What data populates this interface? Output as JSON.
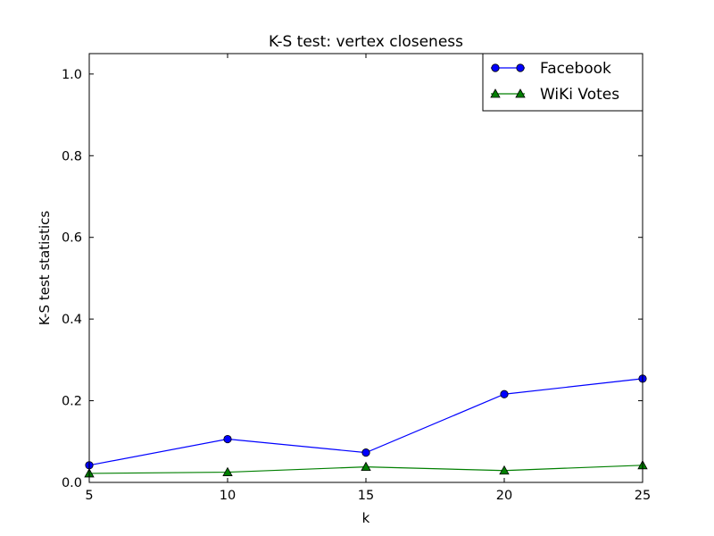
{
  "chart_data": {
    "type": "line",
    "title": "K-S test: vertex closeness",
    "xlabel": "k",
    "ylabel": "K-S test statistics",
    "x": [
      5,
      10,
      15,
      20,
      25
    ],
    "xlim": [
      5,
      25
    ],
    "ylim": [
      0,
      1.05
    ],
    "xticks": [
      5,
      10,
      15,
      20,
      25
    ],
    "yticks": [
      0.0,
      0.2,
      0.4,
      0.6,
      0.8,
      1.0
    ],
    "xtick_labels": [
      "5",
      "10",
      "15",
      "20",
      "25"
    ],
    "ytick_labels": [
      "0.0",
      "0.2",
      "0.4",
      "0.6",
      "0.8",
      "1.0"
    ],
    "grid": false,
    "legend_position": "top-right",
    "series": [
      {
        "name": "Facebook",
        "color": "#0000ff",
        "marker": "circle",
        "values": [
          0.042,
          0.106,
          0.073,
          0.216,
          0.254
        ]
      },
      {
        "name": "WiKi Votes",
        "color": "#007f00",
        "marker": "triangle",
        "values": [
          0.022,
          0.025,
          0.038,
          0.029,
          0.042
        ]
      }
    ]
  }
}
